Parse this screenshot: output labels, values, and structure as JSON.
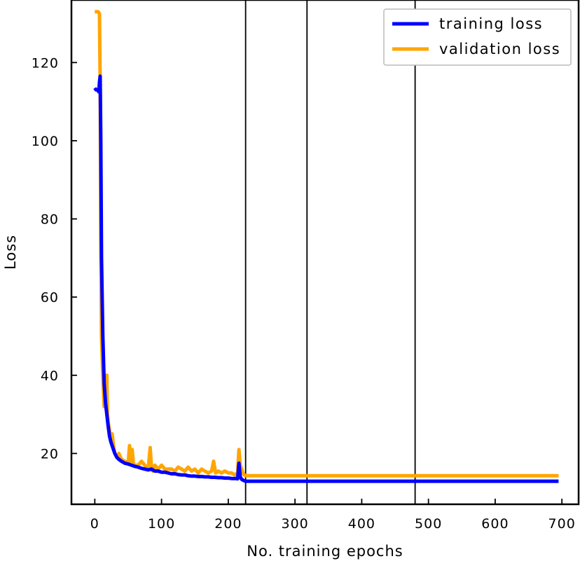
{
  "chart_data": {
    "type": "line",
    "xlabel": "No. training epochs",
    "ylabel": "Loss",
    "xlim": [
      -35,
      725
    ],
    "ylim": [
      7,
      136
    ],
    "xticks": [
      0,
      100,
      200,
      300,
      400,
      500,
      600,
      700
    ],
    "yticks": [
      20,
      40,
      60,
      80,
      100,
      120
    ],
    "grid": false,
    "legend": "top-right",
    "vlines": [
      226,
      318,
      480
    ],
    "series": [
      {
        "name": "validation loss",
        "color": "#ffa500",
        "x": [
          0,
          3,
          5,
          7,
          8,
          9,
          10,
          12,
          14,
          16,
          18,
          19,
          20,
          22,
          24,
          26,
          28,
          30,
          33,
          36,
          40,
          45,
          50,
          52,
          54,
          56,
          58,
          60,
          65,
          70,
          75,
          80,
          83,
          85,
          87,
          90,
          95,
          100,
          105,
          110,
          115,
          120,
          125,
          130,
          135,
          140,
          145,
          150,
          155,
          160,
          165,
          170,
          175,
          178,
          181,
          185,
          190,
          195,
          200,
          205,
          210,
          214,
          216,
          218,
          220,
          222,
          224,
          226,
          230,
          250,
          318,
          400,
          480,
          550,
          600,
          650,
          695
        ],
        "values": [
          133,
          133,
          133,
          132.5,
          115,
          75,
          50,
          40,
          32,
          38,
          40,
          30,
          28,
          26,
          24,
          25,
          22,
          20,
          19,
          20,
          18.5,
          18,
          17.5,
          22,
          18,
          21,
          17,
          17,
          17,
          18,
          17,
          16,
          21.5,
          16,
          15.5,
          17,
          16,
          17,
          16,
          16,
          16,
          15.5,
          16.5,
          16,
          15.5,
          16.5,
          15.5,
          16,
          15,
          16,
          15.5,
          15,
          15.5,
          18,
          15,
          15.5,
          15,
          15.5,
          15,
          15,
          14.5,
          15,
          21,
          17,
          16,
          15,
          14.5,
          14.3,
          14.3,
          14.3,
          14.3,
          14.3,
          14.3,
          14.3,
          14.3,
          14.3,
          14.3
        ]
      },
      {
        "name": "training loss",
        "color": "#0000ff",
        "x": [
          0,
          2,
          4,
          5,
          6,
          7,
          8,
          9,
          10,
          12,
          14,
          16,
          18,
          20,
          22,
          24,
          26,
          28,
          30,
          33,
          36,
          40,
          45,
          50,
          55,
          60,
          65,
          70,
          75,
          80,
          85,
          90,
          95,
          100,
          105,
          110,
          115,
          120,
          125,
          130,
          135,
          140,
          145,
          150,
          155,
          160,
          165,
          170,
          175,
          180,
          185,
          190,
          195,
          200,
          205,
          210,
          214,
          216,
          218,
          220,
          222,
          224,
          226,
          230,
          250,
          318,
          400,
          480,
          550,
          600,
          650,
          695
        ],
        "values": [
          113.5,
          113,
          113,
          112.8,
          112.5,
          115,
          116.5,
          100,
          70,
          50,
          38,
          33,
          30,
          27,
          24.5,
          23,
          22,
          21,
          20,
          19,
          18.5,
          18,
          17.5,
          17.3,
          17,
          16.7,
          16.5,
          16.2,
          16,
          15.8,
          16,
          15.5,
          15.5,
          15.2,
          15.2,
          15,
          14.8,
          14.8,
          14.6,
          14.5,
          14.5,
          14.3,
          14.2,
          14.2,
          14.1,
          14.1,
          14,
          14,
          13.9,
          13.9,
          13.8,
          13.8,
          13.7,
          13.7,
          13.6,
          13.6,
          13.5,
          17.5,
          14,
          13.4,
          13.2,
          13,
          12.9,
          12.9,
          12.9,
          12.9,
          12.9,
          12.9,
          12.9,
          12.9,
          12.9,
          12.9
        ]
      }
    ]
  }
}
